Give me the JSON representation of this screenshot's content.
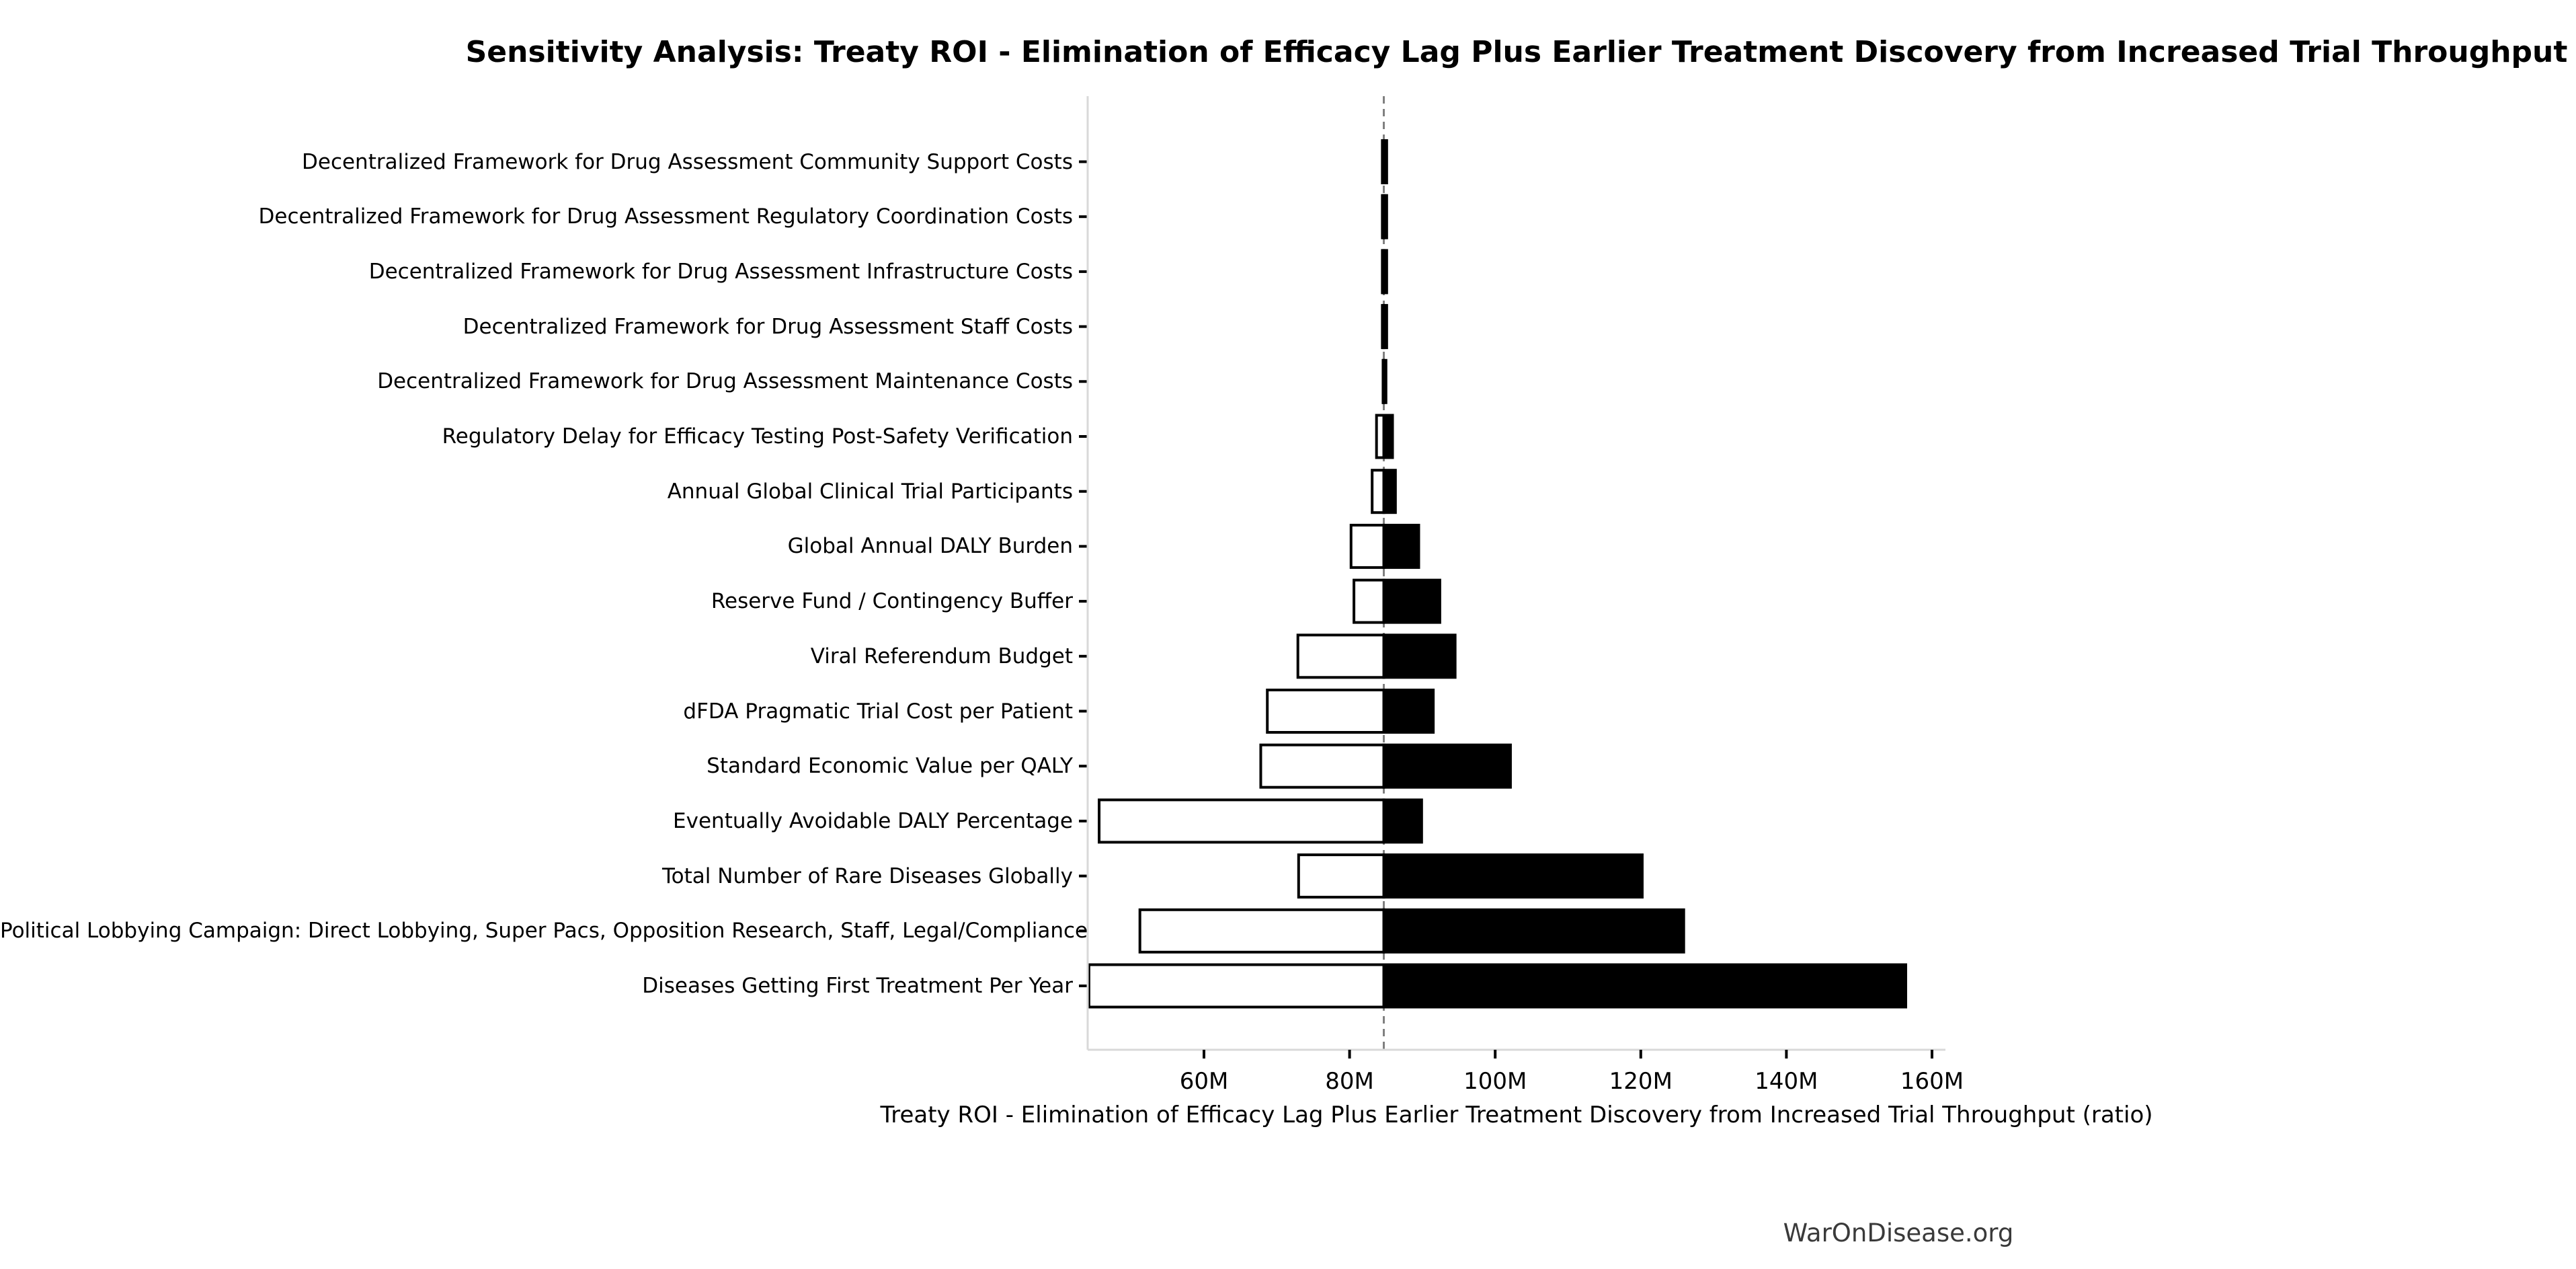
{
  "header": {
    "title": "Sensitivity Analysis: Treaty ROI - Elimination of Efficacy Lag Plus Earlier Treatment Discovery from Increased Trial Throughput"
  },
  "footer": {
    "brand": "WarOnDisease.org"
  },
  "chart_data": {
    "type": "bar",
    "subtype": "tornado-sensitivity",
    "orientation": "horizontal",
    "title": "Sensitivity Analysis: Treaty ROI - Elimination of Efficacy Lag Plus Earlier Treatment Discovery from Increased Trial Throughput",
    "xlabel": "Treaty ROI - Elimination of Efficacy Lag Plus Earlier Treatment Discovery from Increased Trial Throughput (ratio)",
    "x_unit": "M",
    "baseline": 84.7,
    "xlim": [
      44.0,
      161.8
    ],
    "x_ticks": [
      60,
      80,
      100,
      120,
      140,
      160
    ],
    "x_tick_labels": [
      "60M",
      "80M",
      "100M",
      "120M",
      "140M",
      "160M"
    ],
    "grid": false,
    "legend": "none",
    "categories": [
      "Decentralized Framework for Drug Assessment Community Support Costs",
      "Decentralized Framework for Drug Assessment Regulatory Coordination Costs",
      "Decentralized Framework for Drug Assessment Infrastructure Costs",
      "Decentralized Framework for Drug Assessment Staff Costs",
      "Decentralized Framework for Drug Assessment Maintenance Costs",
      "Regulatory Delay for Efficacy Testing Post-Safety Verification",
      "Annual Global Clinical Trial Participants",
      "Global Annual DALY Burden",
      "Reserve Fund / Contingency Buffer",
      "Viral Referendum Budget",
      "dFDA Pragmatic Trial Cost per Patient",
      "Standard Economic Value per QALY",
      "Eventually Avoidable DALY Percentage",
      "Total Number of Rare Diseases Globally",
      "Political Lobbying Campaign: Direct Lobbying, Super Pacs, Opposition Research, Staff, Legal/Compliance",
      "Diseases Getting First Treatment Per Year"
    ],
    "series": [
      {
        "name": "low_value",
        "values": [
          84.5,
          84.5,
          84.5,
          84.5,
          84.6,
          83.7,
          83.1,
          80.2,
          80.6,
          72.9,
          68.7,
          67.8,
          45.6,
          73.0,
          51.2,
          44.2
        ]
      },
      {
        "name": "high_value",
        "values": [
          85.1,
          85.1,
          85.1,
          85.1,
          85.0,
          85.9,
          86.3,
          89.5,
          92.4,
          94.5,
          91.5,
          102.1,
          89.9,
          120.2,
          125.9,
          156.4
        ]
      }
    ],
    "colors": {
      "low_fill": "#ffffff",
      "high_fill": "#000000",
      "bar_edge": "#000000",
      "baseline_line": "#808080",
      "spine": "#d9d9d9",
      "tick": "#000000",
      "text": "#000000",
      "footer_text": "#3a3a3a"
    }
  }
}
